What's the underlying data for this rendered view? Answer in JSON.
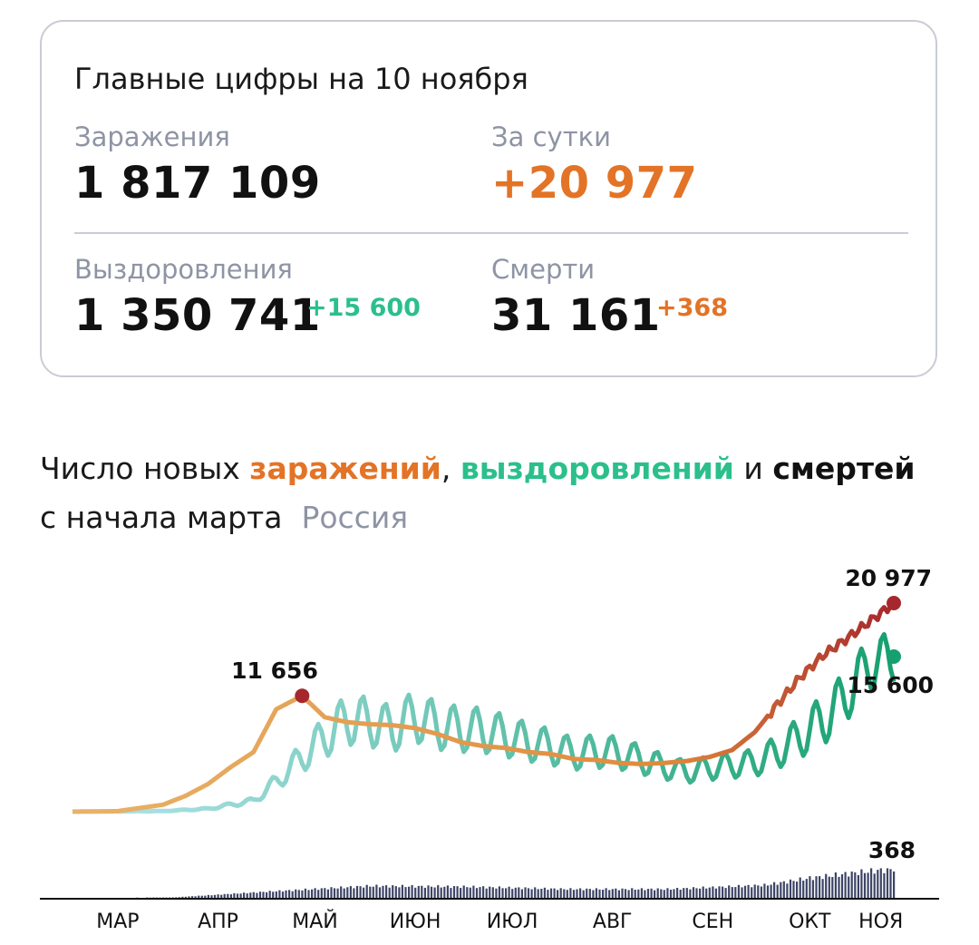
{
  "summary": {
    "title": "Главные цифры на 10 ноября",
    "infections": {
      "label": "Заражения",
      "value": "1 817 109"
    },
    "per_day": {
      "label": "За сутки",
      "value": "+20 977"
    },
    "recoveries": {
      "label": "Выздоровления",
      "value": "1 350 741",
      "delta": "+15 600"
    },
    "deaths": {
      "label": "Смерти",
      "value": "31 161",
      "delta": "+368"
    }
  },
  "chart_heading": {
    "part1": "Число новых ",
    "word_infections": "заражений",
    "comma": ",",
    "word_recoveries": "выздоровлений",
    "and": " и ",
    "word_deaths": "смертей",
    "line2": "с начала марта",
    "region": "Россия"
  },
  "chart_data": {
    "type": "line",
    "x_axis_ticks": [
      "МАР",
      "АПР",
      "МАЙ",
      "ИЮН",
      "ИЮЛ",
      "АВГ",
      "СЕН",
      "ОКТ",
      "НОЯ"
    ],
    "colors": {
      "infections_start": "#e8b36a",
      "infections_mid": "#e08a3c",
      "infections_end": "#a6282c",
      "recoveries_start": "#b6e6ee",
      "recoveries_end": "#16a06f",
      "deaths": "#3d4466"
    },
    "series": [
      {
        "name": "заражений",
        "description": "new infections per day, approximate weekly values",
        "x": [
          "2020-03-01",
          "2020-03-15",
          "2020-03-29",
          "2020-04-05",
          "2020-04-12",
          "2020-04-19",
          "2020-04-26",
          "2020-05-03",
          "2020-05-11",
          "2020-05-18",
          "2020-05-25",
          "2020-06-01",
          "2020-06-08",
          "2020-06-15",
          "2020-06-22",
          "2020-06-29",
          "2020-07-06",
          "2020-07-13",
          "2020-07-20",
          "2020-07-27",
          "2020-08-03",
          "2020-08-10",
          "2020-08-17",
          "2020-08-24",
          "2020-08-31",
          "2020-09-07",
          "2020-09-14",
          "2020-09-21",
          "2020-09-28",
          "2020-10-05",
          "2020-10-12",
          "2020-10-19",
          "2020-10-26",
          "2020-11-02",
          "2020-11-10"
        ],
        "values": [
          5,
          50,
          700,
          1600,
          2800,
          4500,
          6000,
          10300,
          11656,
          9500,
          9000,
          8800,
          8700,
          8400,
          7800,
          7000,
          6600,
          6400,
          6000,
          5800,
          5300,
          5200,
          4900,
          4800,
          4900,
          5100,
          5500,
          6200,
          8000,
          10800,
          13500,
          15700,
          17300,
          19000,
          20977
        ]
      },
      {
        "name": "выздоровлений",
        "description": "new recoveries per day, approximate weekly values",
        "x": [
          "2020-03-01",
          "2020-03-29",
          "2020-04-12",
          "2020-04-26",
          "2020-05-03",
          "2020-05-11",
          "2020-05-18",
          "2020-05-25",
          "2020-06-01",
          "2020-06-08",
          "2020-06-15",
          "2020-06-22",
          "2020-06-29",
          "2020-07-06",
          "2020-07-13",
          "2020-07-20",
          "2020-07-27",
          "2020-08-03",
          "2020-08-10",
          "2020-08-17",
          "2020-08-24",
          "2020-08-31",
          "2020-09-07",
          "2020-09-14",
          "2020-09-21",
          "2020-09-28",
          "2020-10-05",
          "2020-10-12",
          "2020-10-19",
          "2020-10-26",
          "2020-11-02",
          "2020-11-10"
        ],
        "values": [
          0,
          60,
          300,
          1100,
          3000,
          5500,
          7500,
          9300,
          9000,
          8300,
          9600,
          8600,
          8300,
          8200,
          7600,
          7000,
          6500,
          5800,
          6100,
          5900,
          5200,
          4500,
          4000,
          4400,
          4700,
          4900,
          6000,
          7500,
          9200,
          11500,
          14800,
          15600
        ]
      },
      {
        "name": "смертей",
        "description": "new deaths per day shown as bars, approximate weekly values",
        "x": [
          "2020-03-01",
          "2020-04-01",
          "2020-05-01",
          "2020-06-01",
          "2020-07-01",
          "2020-08-01",
          "2020-09-01",
          "2020-10-01",
          "2020-10-15",
          "2020-11-01",
          "2020-11-10"
        ],
        "values": [
          0,
          5,
          80,
          150,
          140,
          110,
          110,
          160,
          250,
          330,
          368
        ]
      }
    ],
    "annotations": {
      "infections_peak_may": "11 656",
      "infections_last": "20 977",
      "recoveries_last": "15 600",
      "deaths_last": "368"
    }
  }
}
